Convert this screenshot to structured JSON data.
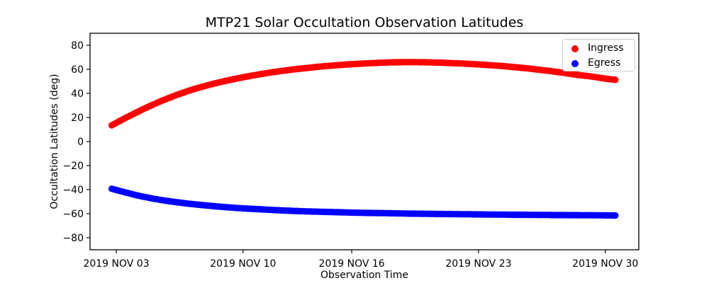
{
  "figure": {
    "title": "MTP21 Solar Occultation Observation Latitudes",
    "xlabel": "Observation Time",
    "ylabel": "Occultation Latitudes (deg)"
  },
  "legend": {
    "position": "upper right",
    "items": [
      {
        "label": "Ingress",
        "color": "#ff0000",
        "marker": "circle"
      },
      {
        "label": "Egress",
        "color": "#0000ff",
        "marker": "circle"
      }
    ]
  },
  "colors": {
    "ingress": "#ff0000",
    "egress": "#0000ff",
    "axis": "#000000",
    "background": "#ffffff",
    "legend_border": "#cccccc"
  },
  "chart_data": {
    "type": "scatter",
    "title": "MTP21 Solar Occultation Observation Latitudes",
    "xlabel": "Observation Time",
    "ylabel": "Occultation Latitudes (deg)",
    "grid": false,
    "legend_position": "upper right",
    "x_axis": {
      "unit": "days since 2019 NOV 03",
      "lim": [
        -1.45,
        28.85
      ],
      "ticks": [
        {
          "pos": 0,
          "label": "2019 NOV 03"
        },
        {
          "pos": 7,
          "label": "2019 NOV 10"
        },
        {
          "pos": 13,
          "label": "2019 NOV 16"
        },
        {
          "pos": 20,
          "label": "2019 NOV 23"
        },
        {
          "pos": 27,
          "label": "2019 NOV 30"
        }
      ]
    },
    "y_axis": {
      "unit": "deg",
      "lim": [
        -90,
        90
      ],
      "ticks": [
        {
          "pos": 80,
          "label": "80"
        },
        {
          "pos": 60,
          "label": "60"
        },
        {
          "pos": 40,
          "label": "40"
        },
        {
          "pos": 20,
          "label": "20"
        },
        {
          "pos": 0,
          "label": "0"
        },
        {
          "pos": -20,
          "label": "−20"
        },
        {
          "pos": -40,
          "label": "−40"
        },
        {
          "pos": -60,
          "label": "−60"
        },
        {
          "pos": -80,
          "label": "−80"
        }
      ]
    },
    "series": [
      {
        "name": "Ingress",
        "color": "#ff0000",
        "marker": "circle",
        "points": [
          [
            -0.25,
            13.5
          ],
          [
            0,
            15.5
          ],
          [
            0.5,
            19.5
          ],
          [
            1,
            23.3
          ],
          [
            1.5,
            27.0
          ],
          [
            2,
            30.5
          ],
          [
            2.5,
            33.8
          ],
          [
            3,
            36.8
          ],
          [
            3.5,
            39.6
          ],
          [
            4,
            42.2
          ],
          [
            4.5,
            44.5
          ],
          [
            5,
            46.6
          ],
          [
            5.5,
            48.5
          ],
          [
            6,
            50.3
          ],
          [
            6.5,
            51.9
          ],
          [
            7,
            53.4
          ],
          [
            7.5,
            54.8
          ],
          [
            8,
            56.1
          ],
          [
            8.5,
            57.3
          ],
          [
            9,
            58.4
          ],
          [
            9.5,
            59.4
          ],
          [
            10,
            60.3
          ],
          [
            10.5,
            61.1
          ],
          [
            11,
            61.9
          ],
          [
            11.5,
            62.6
          ],
          [
            12,
            63.2
          ],
          [
            12.5,
            63.8
          ],
          [
            13,
            64.3
          ],
          [
            13.5,
            64.7
          ],
          [
            14,
            65.1
          ],
          [
            14.5,
            65.4
          ],
          [
            15,
            65.7
          ],
          [
            15.5,
            65.9
          ],
          [
            16,
            66.0
          ],
          [
            16.5,
            66.0
          ],
          [
            17,
            65.9
          ],
          [
            17.5,
            65.7
          ],
          [
            18,
            65.5
          ],
          [
            18.5,
            65.2
          ],
          [
            19,
            64.9
          ],
          [
            19.5,
            64.5
          ],
          [
            20,
            64.1
          ],
          [
            20.5,
            63.6
          ],
          [
            21,
            63.1
          ],
          [
            21.5,
            62.5
          ],
          [
            22,
            61.8
          ],
          [
            22.5,
            61.1
          ],
          [
            23,
            60.3
          ],
          [
            23.5,
            59.4
          ],
          [
            24,
            58.5
          ],
          [
            24.5,
            57.5
          ],
          [
            25,
            56.4
          ],
          [
            25.5,
            55.3
          ],
          [
            26,
            54.5
          ],
          [
            26.5,
            53.4
          ],
          [
            27,
            52.3
          ],
          [
            27.55,
            51.3
          ]
        ]
      },
      {
        "name": "Egress",
        "color": "#0000ff",
        "marker": "circle",
        "points": [
          [
            -0.25,
            -39.3
          ],
          [
            0,
            -40.3
          ],
          [
            0.5,
            -42.3
          ],
          [
            1,
            -44.2
          ],
          [
            1.5,
            -45.9
          ],
          [
            2,
            -47.4
          ],
          [
            2.5,
            -48.7
          ],
          [
            3,
            -49.8
          ],
          [
            3.5,
            -50.8
          ],
          [
            4,
            -51.7
          ],
          [
            4.5,
            -52.5
          ],
          [
            5,
            -53.2
          ],
          [
            5.5,
            -53.9
          ],
          [
            6,
            -54.5
          ],
          [
            6.5,
            -55.1
          ],
          [
            7,
            -55.6
          ],
          [
            7.5,
            -56.0
          ],
          [
            8,
            -56.4
          ],
          [
            8.5,
            -56.8
          ],
          [
            9,
            -57.2
          ],
          [
            9.5,
            -57.5
          ],
          [
            10,
            -57.8
          ],
          [
            10.5,
            -58.1
          ],
          [
            11,
            -58.3
          ],
          [
            11.5,
            -58.5
          ],
          [
            12,
            -58.7
          ],
          [
            12.5,
            -58.9
          ],
          [
            13,
            -59.1
          ],
          [
            13.5,
            -59.3
          ],
          [
            14,
            -59.4
          ],
          [
            14.5,
            -59.5
          ],
          [
            15,
            -59.6
          ],
          [
            15.5,
            -59.75
          ],
          [
            16,
            -59.9
          ],
          [
            16.5,
            -60.0
          ],
          [
            17,
            -60.1
          ],
          [
            17.5,
            -60.2
          ],
          [
            18,
            -60.3
          ],
          [
            18.5,
            -60.35
          ],
          [
            19,
            -60.45
          ],
          [
            19.5,
            -60.5
          ],
          [
            20,
            -60.6
          ],
          [
            20.5,
            -60.7
          ],
          [
            21,
            -60.75
          ],
          [
            21.5,
            -60.8
          ],
          [
            22,
            -60.9
          ],
          [
            22.5,
            -60.95
          ],
          [
            23,
            -61.0
          ],
          [
            23.5,
            -61.05
          ],
          [
            24,
            -61.1
          ],
          [
            24.5,
            -61.15
          ],
          [
            25,
            -61.2
          ],
          [
            25.5,
            -61.25
          ],
          [
            26,
            -61.3
          ],
          [
            26.5,
            -61.35
          ],
          [
            27,
            -61.4
          ],
          [
            27.55,
            -61.5
          ]
        ]
      }
    ]
  }
}
